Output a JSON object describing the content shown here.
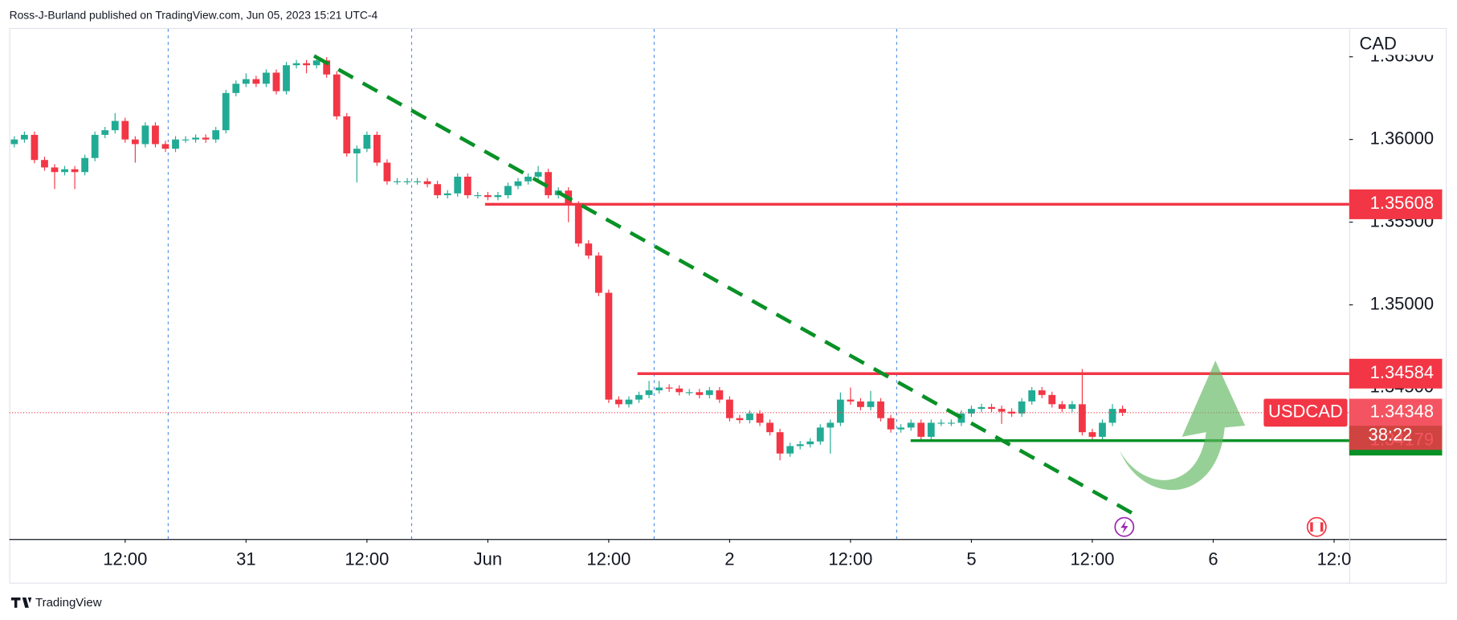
{
  "header": "Ross-J-Burland published on TradingView.com, Jun 05, 2023 15:21 UTC-4",
  "footer": "TradingView",
  "chart_data": {
    "type": "candlestick",
    "currency": "CAD",
    "up_color": "#22ab94",
    "down_color": "#f23645",
    "xlim": [
      -0.5,
      132.5
    ],
    "xticks": [
      {
        "value": 11,
        "label": "12:00"
      },
      {
        "value": 23,
        "label": "31"
      },
      {
        "value": 35,
        "label": "12:00"
      },
      {
        "value": 47,
        "label": "Jun"
      },
      {
        "value": 59,
        "label": "12:00"
      },
      {
        "value": 71,
        "label": "2"
      },
      {
        "value": 83,
        "label": "12:00"
      },
      {
        "value": 95,
        "label": "5"
      },
      {
        "value": 107,
        "label": "12:00"
      },
      {
        "value": 119,
        "label": "6"
      },
      {
        "value": 131,
        "label": "12:0"
      }
    ],
    "ylim": [
      1.33584,
      1.36674
    ],
    "yticks": [
      {
        "value": 1.365,
        "label": "1.36500"
      },
      {
        "value": 1.36,
        "label": "1.36000"
      },
      {
        "value": 1.355,
        "label": "1.35500"
      },
      {
        "value": 1.35,
        "label": "1.35000"
      },
      {
        "value": 1.345,
        "label": "1.34500"
      }
    ],
    "grid": false,
    "open": [
      1.35972,
      1.36,
      1.36028,
      1.35876,
      1.35831,
      1.35803,
      1.3582,
      1.35803,
      1.35888,
      1.36028,
      1.36056,
      1.36112,
      1.36,
      1.35972,
      1.36084,
      1.35972,
      1.35944,
      1.36,
      1.36,
      1.36011,
      1.36,
      1.36056,
      1.36281,
      1.36337,
      1.36365,
      1.36337,
      1.36404,
      1.36292,
      1.36449,
      1.36461,
      1.36449,
      1.36478,
      1.36393,
      1.3614,
      1.35916,
      1.35944,
      1.36028,
      1.3586,
      1.35747,
      1.35747,
      1.35747,
      1.35747,
      1.3573,
      1.35663,
      1.35674,
      1.35775,
      1.35663,
      1.35663,
      1.35652,
      1.35663,
      1.35719,
      1.35747,
      1.35775,
      1.35803,
      1.35663,
      1.35691,
      1.35607,
      1.35371,
      1.35298,
      1.35073,
      1.34427,
      1.34399,
      1.34427,
      1.34455,
      1.34483,
      1.345,
      1.34494,
      1.34472,
      1.34472,
      1.34455,
      1.34483,
      1.34427,
      1.34315,
      1.34303,
      1.34343,
      1.34287,
      1.3423,
      1.34101,
      1.34146,
      1.34157,
      1.34174,
      1.34258,
      1.34287,
      1.34427,
      1.34416,
      1.34382,
      1.34416,
      1.34315,
      1.34247,
      1.34258,
      1.34287,
      1.34202,
      1.34287,
      1.34287,
      1.34287,
      1.34343,
      1.34371,
      1.34382,
      1.34371,
      1.34354,
      1.34343,
      1.34416,
      1.34483,
      1.34455,
      1.34399,
      1.34371,
      1.34399,
      1.3423,
      1.34202,
      1.34287,
      1.34371
    ],
    "high": [
      1.3602,
      1.36048,
      1.36048,
      1.35896,
      1.35851,
      1.3584,
      1.3584,
      1.35908,
      1.36048,
      1.36076,
      1.3616,
      1.36132,
      1.3602,
      1.36104,
      1.36104,
      1.35992,
      1.3602,
      1.3602,
      1.36031,
      1.36031,
      1.36076,
      1.36301,
      1.36357,
      1.364,
      1.36385,
      1.36424,
      1.36424,
      1.36469,
      1.36481,
      1.36481,
      1.365,
      1.36498,
      1.36413,
      1.3616,
      1.35964,
      1.36048,
      1.36048,
      1.3588,
      1.35767,
      1.35767,
      1.35767,
      1.35767,
      1.3575,
      1.35694,
      1.35795,
      1.35795,
      1.35683,
      1.35683,
      1.35683,
      1.35739,
      1.35767,
      1.35795,
      1.3584,
      1.35823,
      1.35711,
      1.35711,
      1.35627,
      1.35391,
      1.35318,
      1.35093,
      1.34447,
      1.34447,
      1.34475,
      1.3454,
      1.3454,
      1.3452,
      1.34514,
      1.34492,
      1.34492,
      1.34503,
      1.34503,
      1.34447,
      1.34335,
      1.34363,
      1.34363,
      1.34307,
      1.3425,
      1.34166,
      1.34177,
      1.34194,
      1.34278,
      1.34307,
      1.3447,
      1.345,
      1.34436,
      1.3448,
      1.34436,
      1.34335,
      1.34278,
      1.34307,
      1.34307,
      1.34307,
      1.34307,
      1.34307,
      1.34363,
      1.34391,
      1.34402,
      1.34402,
      1.34391,
      1.34374,
      1.34436,
      1.34503,
      1.34503,
      1.34475,
      1.34419,
      1.34419,
      1.34612,
      1.3425,
      1.34307,
      1.344,
      1.34391
    ],
    "low": [
      1.35952,
      1.3598,
      1.35856,
      1.35811,
      1.357,
      1.35783,
      1.357,
      1.35783,
      1.35868,
      1.36008,
      1.36036,
      1.3598,
      1.3586,
      1.35952,
      1.35952,
      1.35924,
      1.35924,
      1.3598,
      1.3598,
      1.3598,
      1.3598,
      1.36036,
      1.36261,
      1.36317,
      1.36317,
      1.36317,
      1.36272,
      1.36272,
      1.36429,
      1.364,
      1.36429,
      1.36373,
      1.3612,
      1.35896,
      1.3574,
      1.35924,
      1.3584,
      1.35727,
      1.35727,
      1.35727,
      1.35727,
      1.3571,
      1.35643,
      1.35643,
      1.35654,
      1.35643,
      1.35643,
      1.35632,
      1.35632,
      1.35643,
      1.35699,
      1.35727,
      1.35755,
      1.35643,
      1.35643,
      1.355,
      1.35351,
      1.35278,
      1.35053,
      1.34407,
      1.34379,
      1.34379,
      1.34407,
      1.34435,
      1.34463,
      1.34474,
      1.34452,
      1.34452,
      1.34435,
      1.34435,
      1.34407,
      1.34295,
      1.34283,
      1.34283,
      1.34267,
      1.3421,
      1.3406,
      1.34081,
      1.34126,
      1.34137,
      1.34154,
      1.341,
      1.34267,
      1.34396,
      1.34362,
      1.34362,
      1.34295,
      1.34227,
      1.34227,
      1.34238,
      1.34182,
      1.34182,
      1.34267,
      1.34267,
      1.34267,
      1.34323,
      1.34351,
      1.34351,
      1.3428,
      1.34323,
      1.34323,
      1.34396,
      1.34435,
      1.34379,
      1.34351,
      1.34351,
      1.3421,
      1.34182,
      1.34182,
      1.34267,
      1.34328
    ],
    "close": [
      1.36,
      1.36028,
      1.35876,
      1.35831,
      1.35803,
      1.3582,
      1.35803,
      1.35888,
      1.36028,
      1.36056,
      1.36112,
      1.36,
      1.35972,
      1.36084,
      1.35972,
      1.35944,
      1.36,
      1.36,
      1.36011,
      1.36,
      1.36056,
      1.36281,
      1.36337,
      1.36365,
      1.36337,
      1.36404,
      1.36292,
      1.36449,
      1.36461,
      1.36449,
      1.36478,
      1.36393,
      1.3614,
      1.35916,
      1.35944,
      1.36028,
      1.3586,
      1.35747,
      1.35747,
      1.35747,
      1.35747,
      1.3573,
      1.35663,
      1.35674,
      1.35775,
      1.35663,
      1.35663,
      1.35652,
      1.35663,
      1.35719,
      1.35747,
      1.35775,
      1.35803,
      1.35663,
      1.35691,
      1.35607,
      1.35371,
      1.35298,
      1.35073,
      1.34427,
      1.34399,
      1.34427,
      1.34455,
      1.34483,
      1.345,
      1.34494,
      1.34472,
      1.34472,
      1.34455,
      1.34483,
      1.34427,
      1.34315,
      1.34303,
      1.34343,
      1.34287,
      1.3423,
      1.34101,
      1.34146,
      1.34157,
      1.34174,
      1.34258,
      1.34287,
      1.34427,
      1.34416,
      1.34382,
      1.34416,
      1.34315,
      1.34247,
      1.34258,
      1.34287,
      1.34202,
      1.34287,
      1.34287,
      1.34287,
      1.34343,
      1.34371,
      1.34382,
      1.34371,
      1.34354,
      1.34343,
      1.34416,
      1.34483,
      1.34455,
      1.34399,
      1.34371,
      1.34399,
      1.3423,
      1.34202,
      1.34287,
      1.34371,
      1.34348
    ],
    "levels": [
      {
        "value": 1.35608,
        "color": "#f23645"
      },
      {
        "value": 1.34584,
        "color": "#f23645"
      },
      {
        "value": 1.34179,
        "color": "#089126"
      }
    ],
    "last": {
      "symbol": "USDCAD",
      "value": 1.34348,
      "countdown": "38:22",
      "color": "#f23645"
    }
  }
}
